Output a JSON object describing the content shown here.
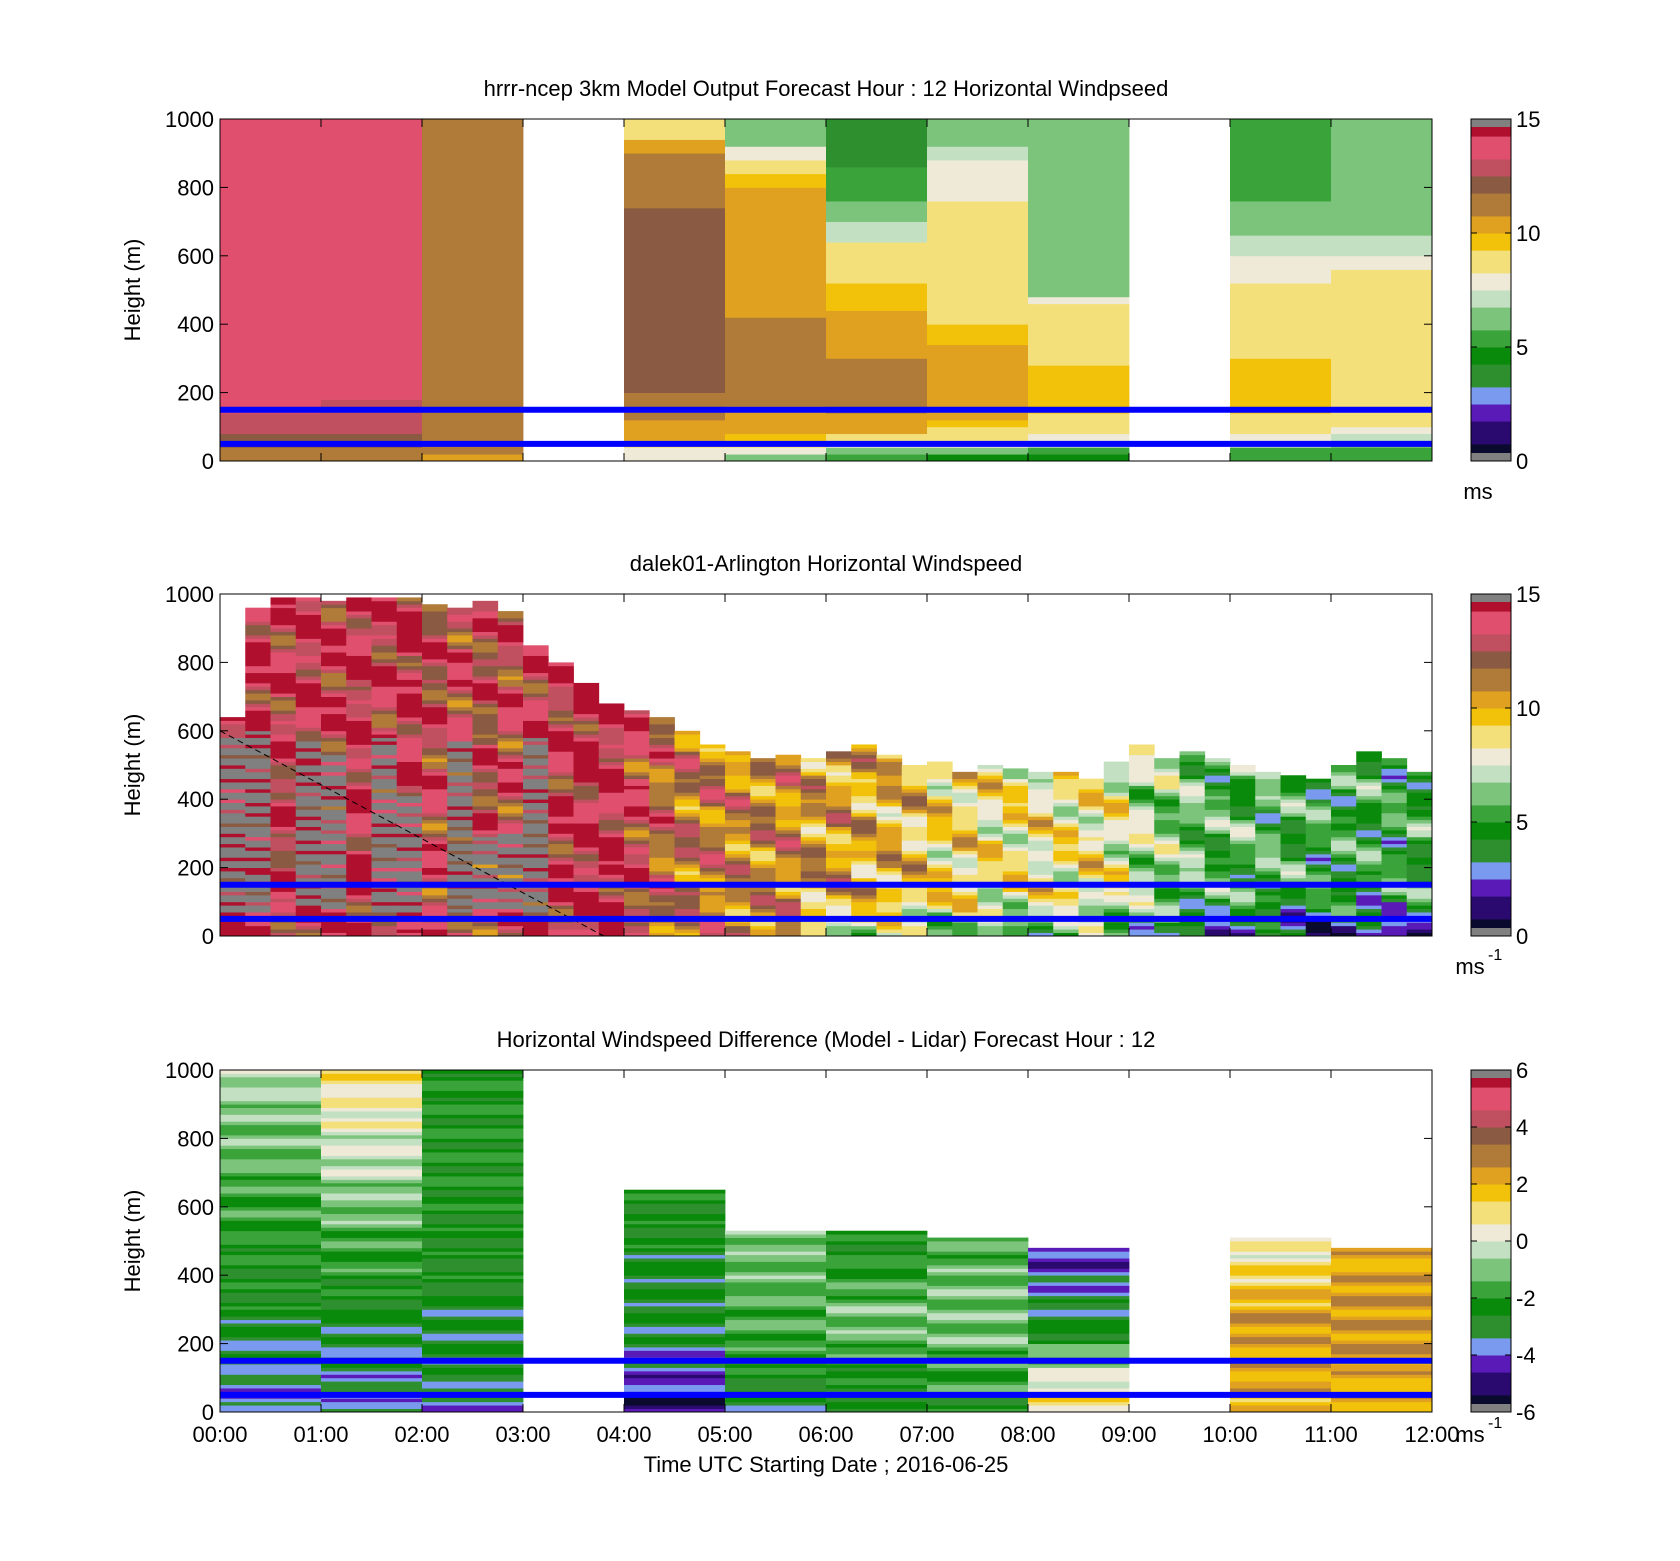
{
  "figure": {
    "xlabel": "Time UTC  Starting Date ; 2016-06-25",
    "x_ticks": [
      "00:00",
      "01:00",
      "02:00",
      "03:00",
      "04:00",
      "05:00",
      "06:00",
      "07:00",
      "08:00",
      "09:00",
      "10:00",
      "11:00",
      "12:00"
    ]
  },
  "colormap": [
    "#808080",
    "#0a0a2e",
    "#2a0a6e",
    "#5a1ab8",
    "#7a9af0",
    "#2e8f2e",
    "#0a8a0a",
    "#3aa33a",
    "#7cc47c",
    "#c3e0c3",
    "#efe9d8",
    "#f3e07a",
    "#f2c20a",
    "#e0a020",
    "#b07a38",
    "#8a5a42",
    "#c05060",
    "#e0506e",
    "#b0102e",
    "#808080"
  ],
  "chart_data": [
    {
      "type": "heatmap",
      "title": "hrrr-ncep 3km Model Output   Forecast Hour : 12 Horizontal Windpseed",
      "ylabel": "Height (m)",
      "colorbar_label": "ms",
      "xlim": [
        0,
        12
      ],
      "ylim": [
        0,
        1000
      ],
      "yticks": [
        "0",
        "200",
        "400",
        "600",
        "800",
        "1000"
      ],
      "clim": [
        0,
        15
      ],
      "colorbar_ticks": [
        "0",
        "5",
        "10",
        "15"
      ],
      "reference_lines_m": [
        50,
        150
      ],
      "hours": [
        0,
        1,
        2,
        3,
        4,
        5,
        6,
        7,
        8,
        9,
        10,
        11
      ],
      "heights": [
        10,
        30,
        50,
        70,
        90,
        110,
        130,
        150,
        170,
        190,
        210,
        230,
        250,
        270,
        290,
        310,
        330,
        350,
        370,
        390,
        410,
        430,
        450,
        470,
        490,
        510,
        530,
        550,
        570,
        590,
        610,
        630,
        650,
        670,
        690,
        710,
        730,
        750,
        770,
        790,
        810,
        830,
        850,
        870,
        890,
        910,
        930,
        950,
        970,
        990
      ],
      "profiles": [
        [
          11,
          11,
          12,
          12,
          13,
          13,
          13,
          13.5,
          14,
          14,
          14,
          14,
          14,
          14,
          14,
          14,
          14,
          14,
          14,
          14,
          14,
          14,
          14,
          14,
          14,
          14,
          14,
          14,
          14,
          14,
          14,
          14,
          14,
          14,
          14,
          14,
          14,
          14,
          14,
          14,
          14,
          14,
          14,
          14,
          14,
          14,
          14,
          14,
          14,
          14
        ],
        [
          11,
          11,
          12,
          12,
          12.5,
          13,
          13,
          13,
          13,
          13.5,
          13.5,
          13.5,
          13.5,
          13.5,
          13.5,
          13.5,
          13.5,
          13.5,
          13.5,
          13.5,
          13.5,
          13.5,
          13.5,
          13.5,
          13.5,
          13.5,
          13.5,
          13.5,
          13.5,
          13.5,
          13.5,
          13.5,
          13.5,
          13.5,
          13.5,
          13.5,
          13.5,
          13.5,
          13.5,
          13.5,
          13.5,
          13.5,
          13.5,
          13.5,
          13.5,
          13.5,
          13.5,
          13.5,
          13.5,
          13.5
        ],
        [
          10,
          11,
          11,
          11,
          11,
          11,
          11,
          11,
          11,
          11,
          11,
          11,
          11,
          11,
          11,
          11,
          11,
          11,
          11,
          11,
          11,
          11,
          11,
          11,
          11,
          11,
          11,
          11,
          11,
          11,
          11,
          11,
          11,
          11,
          11,
          11,
          11,
          11,
          11,
          11,
          11,
          11,
          11,
          11,
          11,
          11,
          11,
          11,
          11,
          11
        ],
        [
          null,
          null,
          null,
          null,
          null,
          null,
          null,
          null,
          null,
          null,
          null,
          null,
          null,
          null,
          null,
          null,
          null,
          null,
          null,
          null,
          null,
          null,
          null,
          null,
          null,
          null,
          null,
          null,
          null,
          null,
          null,
          null,
          null,
          null,
          null,
          null,
          null,
          null,
          null,
          null,
          null,
          null,
          null,
          null,
          null,
          null,
          null,
          null,
          null,
          null
        ],
        [
          7.5,
          8,
          9,
          10,
          10,
          10.5,
          11,
          11,
          11,
          11,
          12,
          12,
          12,
          12,
          12,
          12,
          12,
          12,
          12,
          12,
          12,
          12,
          12,
          12,
          12,
          12,
          12,
          12,
          12,
          12,
          12,
          12,
          12,
          12,
          12,
          12,
          12,
          11,
          11,
          11,
          11,
          11,
          11,
          11,
          11,
          10,
          10,
          9,
          9,
          9
        ],
        [
          6,
          7.5,
          9,
          9.5,
          10,
          10.5,
          10.5,
          10.5,
          11,
          11,
          11,
          11,
          11,
          11,
          11,
          11,
          11,
          11,
          11,
          11,
          11,
          10.5,
          10.5,
          10.5,
          10.5,
          10.5,
          10.5,
          10.5,
          10.5,
          10.5,
          10.5,
          10.5,
          10.5,
          10.5,
          10.5,
          10,
          10,
          10,
          10,
          10,
          9.5,
          9.5,
          9,
          9,
          8,
          8,
          6,
          6,
          6,
          6
        ],
        [
          5,
          6,
          8,
          9,
          10,
          10,
          10.5,
          11,
          11,
          11,
          11,
          11,
          11,
          11,
          11,
          10.5,
          10.5,
          10.5,
          10,
          10,
          10,
          10,
          9.5,
          9.5,
          9.5,
          9.5,
          9,
          9,
          9,
          9,
          9,
          9,
          7,
          7,
          7,
          6,
          6,
          6,
          5,
          5,
          5,
          5,
          5,
          4,
          4,
          4,
          4,
          4,
          4,
          4
        ],
        [
          4.5,
          6,
          7.5,
          8.5,
          9,
          9.5,
          10,
          10,
          10,
          10,
          10,
          10,
          10,
          10,
          10,
          10,
          10,
          9.5,
          9.5,
          9.5,
          9,
          9,
          9,
          9,
          9,
          9,
          9,
          9,
          8.5,
          8.5,
          8.5,
          8.5,
          8.5,
          8.5,
          8.5,
          8.5,
          8.5,
          8.5,
          7.8,
          7.8,
          7.8,
          7.8,
          7.8,
          7.8,
          7,
          7,
          6.5,
          6.5,
          6.5,
          6.5
        ],
        [
          4.5,
          5.5,
          7,
          8,
          8.5,
          9,
          9,
          9.5,
          9.5,
          9.5,
          9.5,
          9.5,
          9.5,
          9.5,
          9,
          9,
          9,
          9,
          9,
          9,
          8.5,
          8.5,
          8.5,
          7.8,
          6.5,
          6.5,
          6.5,
          6.5,
          6.5,
          6.5,
          6.5,
          6.5,
          6.5,
          6.5,
          6.5,
          6.5,
          6.5,
          6.5,
          6.5,
          6.5,
          6.5,
          6.5,
          6.5,
          6.5,
          6.5,
          6.5,
          6,
          6,
          6,
          6
        ],
        [
          null,
          null,
          null,
          null,
          null,
          null,
          null,
          null,
          null,
          null,
          null,
          null,
          null,
          null,
          null,
          null,
          null,
          null,
          null,
          null,
          null,
          null,
          null,
          null,
          null,
          null,
          null,
          null,
          null,
          null,
          null,
          null,
          null,
          null,
          null,
          null,
          null,
          null,
          null,
          null,
          null,
          null,
          null,
          null,
          null,
          null,
          null,
          null,
          null,
          null
        ],
        [
          5,
          5.5,
          7,
          8,
          8.5,
          9,
          9,
          9.5,
          9.5,
          9.5,
          9.5,
          9.5,
          9.5,
          9.5,
          9.5,
          9,
          9,
          9,
          9,
          9,
          9,
          9,
          9,
          9,
          9,
          9,
          8,
          8,
          8,
          8,
          7,
          7,
          7,
          6,
          6,
          6,
          6,
          6,
          5.5,
          5.5,
          5.5,
          5,
          5,
          5,
          5,
          5,
          5,
          5,
          5,
          5
        ],
        [
          5,
          5,
          6,
          7,
          8,
          8.5,
          9,
          9,
          9,
          9,
          9,
          9,
          9,
          9,
          9,
          9,
          9,
          9,
          9,
          9,
          9,
          9,
          9,
          9,
          9,
          8.5,
          8.5,
          8.5,
          8,
          8,
          7,
          7,
          7,
          6.5,
          6.5,
          6.5,
          6.5,
          6.5,
          6.5,
          6.5,
          6.5,
          6.5,
          6,
          6,
          6,
          6,
          6,
          6,
          6,
          6
        ]
      ]
    },
    {
      "type": "heatmap",
      "title": "dalek01-Arlington  Horizontal Windspeed",
      "ylabel": "Height (m)",
      "colorbar_label": "ms",
      "colorbar_exponent": "-1",
      "xlim": [
        0,
        12
      ],
      "ylim": [
        0,
        1000
      ],
      "yticks": [
        "0",
        "200",
        "400",
        "600",
        "800",
        "1000"
      ],
      "clim": [
        0,
        15
      ],
      "colorbar_ticks": [
        "0",
        "5",
        "10",
        "15"
      ],
      "reference_lines_m": [
        50,
        150
      ],
      "time_step_hours": 0.25,
      "valid_top_m": [
        640,
        960,
        990,
        990,
        980,
        990,
        990,
        990,
        970,
        960,
        980,
        950,
        850,
        800,
        740,
        680,
        660,
        640,
        600,
        560,
        540,
        520,
        530,
        520,
        540,
        560,
        530,
        500,
        510,
        480,
        500,
        490,
        480,
        480,
        460,
        510,
        560,
        520,
        540,
        520,
        500,
        480,
        470,
        460,
        500,
        540,
        520,
        480
      ],
      "column_mean_ms": [
        14,
        14,
        13.5,
        14,
        13.5,
        14,
        13.5,
        14,
        13,
        13,
        13,
        13,
        13.5,
        13.5,
        14,
        14,
        13,
        12,
        11.5,
        11.5,
        11,
        11,
        11,
        10.5,
        10.5,
        10,
        10,
        9.5,
        9,
        9,
        8.5,
        8.5,
        8.5,
        8.5,
        8.5,
        8,
        7,
        6.5,
        6,
        5.5,
        5.5,
        5.5,
        5,
        5,
        5,
        5,
        5,
        5
      ],
      "low_altitude_gray_hours": [
        0,
        3.2
      ],
      "dashed_line": {
        "from": [
          0,
          600
        ],
        "to": [
          3.8,
          0
        ]
      }
    },
    {
      "type": "heatmap",
      "title": "Horizontal Windspeed Difference (Model - Lidar) Forecast Hour : 12",
      "ylabel": "Height (m)",
      "colorbar_label": "ms",
      "colorbar_exponent": "-1",
      "xlim": [
        0,
        12
      ],
      "ylim": [
        0,
        1000
      ],
      "yticks": [
        "0",
        "200",
        "400",
        "600",
        "800",
        "1000"
      ],
      "clim": [
        -6,
        6
      ],
      "colorbar_ticks": [
        "-6",
        "-4",
        "-2",
        "0",
        "2",
        "4",
        "6"
      ],
      "reference_lines_m": [
        50,
        150
      ],
      "hours": [
        0,
        1,
        2,
        3,
        4,
        5,
        6,
        7,
        8,
        9,
        10,
        11
      ],
      "column_tops_m": [
        1000,
        1000,
        1000,
        0,
        650,
        530,
        530,
        510,
        480,
        0,
        510,
        480
      ],
      "column_top_values": [
        -0.5,
        1,
        -2,
        null,
        -2.5,
        -1,
        -2.5,
        -1.5,
        -4.5,
        null,
        0,
        2
      ],
      "column_mid_values": [
        -2.8,
        -2.8,
        -2.8,
        null,
        -2.8,
        -1.5,
        -1,
        -1,
        -2.8,
        null,
        2.5,
        2.5
      ],
      "column_low_values": [
        -3.5,
        -3.5,
        -3.2,
        null,
        -4.5,
        -2.8,
        -2.8,
        -2,
        1,
        null,
        2,
        2
      ],
      "column_bottom_values": [
        -4,
        -3.5,
        -3.5,
        null,
        -5,
        -3,
        -3,
        -2.5,
        1,
        null,
        2,
        2
      ]
    }
  ]
}
